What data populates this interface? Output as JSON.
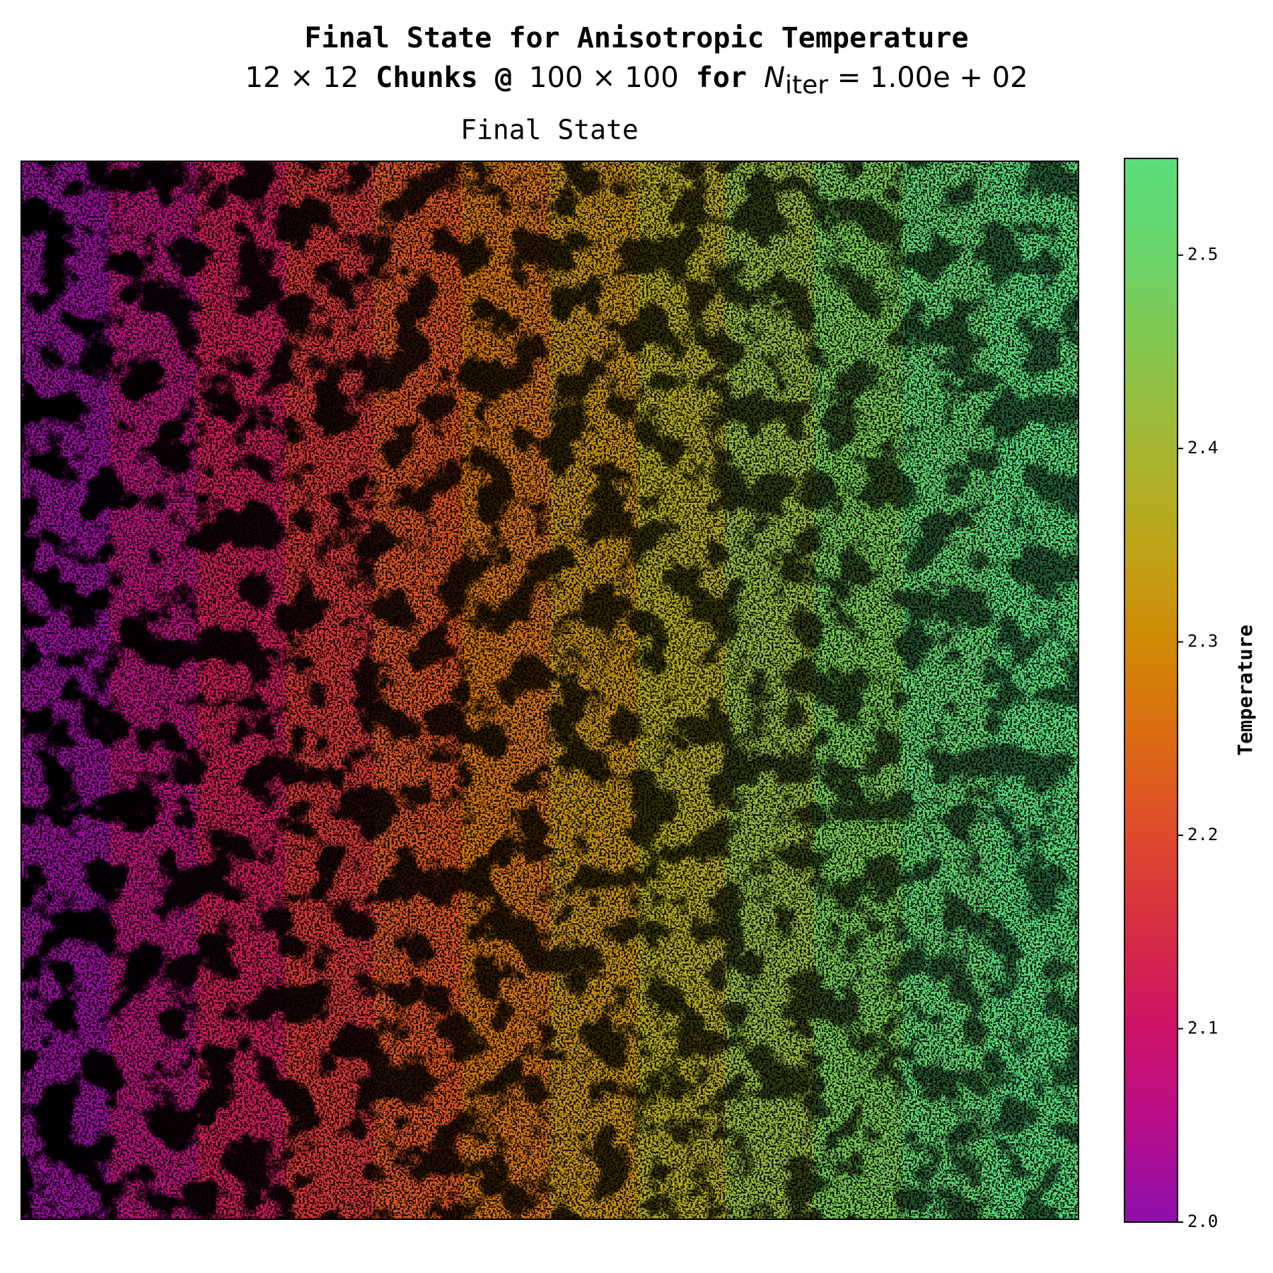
{
  "chart_data": {
    "type": "heatmap",
    "title": "Final State for Anisotropic Temperature",
    "title_line2": [
      "12 × 12",
      " Chunks @ ",
      "100 × 100",
      " for ",
      "N",
      "iter",
      " = 1.00e + 02"
    ],
    "subtitle": "Final State",
    "values": [
      2.02,
      2.07,
      2.12,
      2.17,
      2.22,
      2.27,
      2.32,
      2.37,
      2.42,
      2.47,
      2.52,
      2.55
    ],
    "colormap_colors": [
      "#8c0fab",
      "#b80e8c",
      "#cd1268",
      "#d62c44",
      "#de4a2c",
      "#dc6a14",
      "#d08a04",
      "#bea518",
      "#a6b632",
      "#86c64c",
      "#68d46a",
      "#5ade7c"
    ],
    "colorbar": {
      "label": "Temperature",
      "lim": [
        2.0,
        2.55
      ],
      "ticks": [
        {
          "value": 2.0,
          "label": "2.0"
        },
        2.1,
        2.2,
        2.3,
        2.4,
        2.5
      ]
    }
  }
}
